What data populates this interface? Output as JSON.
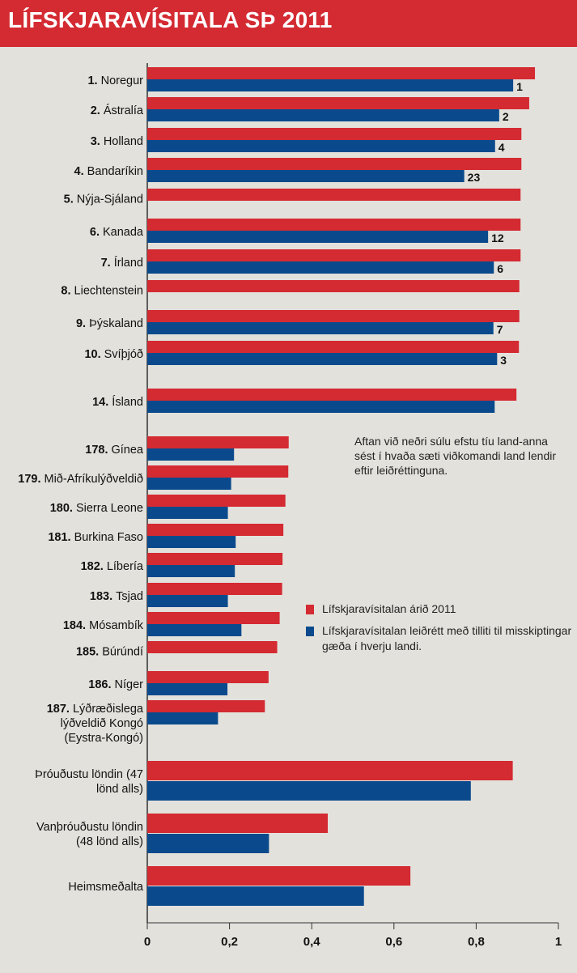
{
  "title": "LÍFSKJARAVÍSITALA SÞ 2011",
  "note": "Aftan við neðri súlu efstu tíu land-anna sést í hvaða sæti viðkomandi land lendir eftir leiðréttinguna.",
  "legend": [
    {
      "label": "Lífskjaravísitalan árið 2011",
      "color": "#d42a32"
    },
    {
      "label": "Lífskjaravísitalan leiðrétt með tilliti til misskiptingar gæða í hverju landi.",
      "color": "#0a4a8c"
    }
  ],
  "chart_data": {
    "type": "bar",
    "orientation": "horizontal",
    "xlim": [
      0,
      1
    ],
    "xticks": [
      "0",
      "0,2",
      "0,4",
      "0,6",
      "0,8",
      "1"
    ],
    "series": [
      {
        "name": "Lífskjaravísitalan árið 2011",
        "color": "#d42a32"
      },
      {
        "name": "Lífskjaravísitalan leiðrétt með tilliti til misskiptingar gæða í hverju landi.",
        "color": "#0a4a8c"
      }
    ],
    "groups": [
      {
        "rank": "1.",
        "name": "Noregur",
        "red": 0.943,
        "blue": 0.89,
        "adj_rank": "1"
      },
      {
        "rank": "2.",
        "name": "Ástralía",
        "red": 0.929,
        "blue": 0.856,
        "adj_rank": "2"
      },
      {
        "rank": "3.",
        "name": "Holland",
        "red": 0.91,
        "blue": 0.846,
        "adj_rank": "4"
      },
      {
        "rank": "4.",
        "name": "Bandaríkin",
        "red": 0.91,
        "blue": 0.771,
        "adj_rank": "23"
      },
      {
        "rank": "5.",
        "name": "Nýja-Sjáland",
        "red": 0.908,
        "blue": null,
        "adj_rank": ""
      },
      {
        "rank": "6.",
        "name": "Kanada",
        "red": 0.908,
        "blue": 0.829,
        "adj_rank": "12"
      },
      {
        "rank": "7.",
        "name": "Írland",
        "red": 0.908,
        "blue": 0.843,
        "adj_rank": "6"
      },
      {
        "rank": "8.",
        "name": "Liechtenstein",
        "red": 0.905,
        "blue": null,
        "adj_rank": ""
      },
      {
        "rank": "9.",
        "name": "Þýskaland",
        "red": 0.905,
        "blue": 0.842,
        "adj_rank": "7"
      },
      {
        "rank": "10.",
        "name": "Svíþjóð",
        "red": 0.904,
        "blue": 0.851,
        "adj_rank": "3"
      },
      {
        "rank": "14.",
        "name": "Ísland",
        "red": 0.898,
        "blue": 0.845,
        "adj_rank": ""
      },
      {
        "rank": "178.",
        "name": "Gínea",
        "red": 0.344,
        "blue": 0.211,
        "adj_rank": ""
      },
      {
        "rank": "179.",
        "name": "Mið-Afríkulýðveldið",
        "red": 0.343,
        "blue": 0.204,
        "adj_rank": ""
      },
      {
        "rank": "180.",
        "name": "Sierra Leone",
        "red": 0.336,
        "blue": 0.196,
        "adj_rank": ""
      },
      {
        "rank": "181.",
        "name": "Burkina Faso",
        "red": 0.331,
        "blue": 0.215,
        "adj_rank": ""
      },
      {
        "rank": "182.",
        "name": "Líbería",
        "red": 0.329,
        "blue": 0.213,
        "adj_rank": ""
      },
      {
        "rank": "183.",
        "name": "Tsjad",
        "red": 0.328,
        "blue": 0.196,
        "adj_rank": ""
      },
      {
        "rank": "184.",
        "name": "Mósambík",
        "red": 0.322,
        "blue": 0.229,
        "adj_rank": ""
      },
      {
        "rank": "185.",
        "name": "Búrúndí",
        "red": 0.316,
        "blue": null,
        "adj_rank": ""
      },
      {
        "rank": "186.",
        "name": "Níger",
        "red": 0.295,
        "blue": 0.195,
        "adj_rank": ""
      },
      {
        "rank": "187.",
        "name": "Lýðræðislega lýðveldið Kongó (Eystra-Kongó)",
        "name_lines": [
          "Lýðræðislega",
          "lýðveldið Kongó",
          "(Eystra-Kongó)"
        ],
        "red": 0.286,
        "blue": 0.172,
        "adj_rank": ""
      },
      {
        "rank": "",
        "name": "Þróuðustu löndin (47 lönd alls)",
        "name_lines": [
          "Þróuðustu löndin (47",
          "lönd alls)"
        ],
        "red": 0.889,
        "blue": 0.787,
        "adj_rank": ""
      },
      {
        "rank": "",
        "name": "Vanþróuðustu löndin (48 lönd alls)",
        "name_lines": [
          "Vanþróuðustu löndin",
          "(48 lönd alls)"
        ],
        "red": 0.439,
        "blue": 0.296,
        "adj_rank": ""
      },
      {
        "rank": "",
        "name": "Heimsmeðalta",
        "red": 0.64,
        "blue": 0.527,
        "adj_rank": ""
      }
    ]
  }
}
